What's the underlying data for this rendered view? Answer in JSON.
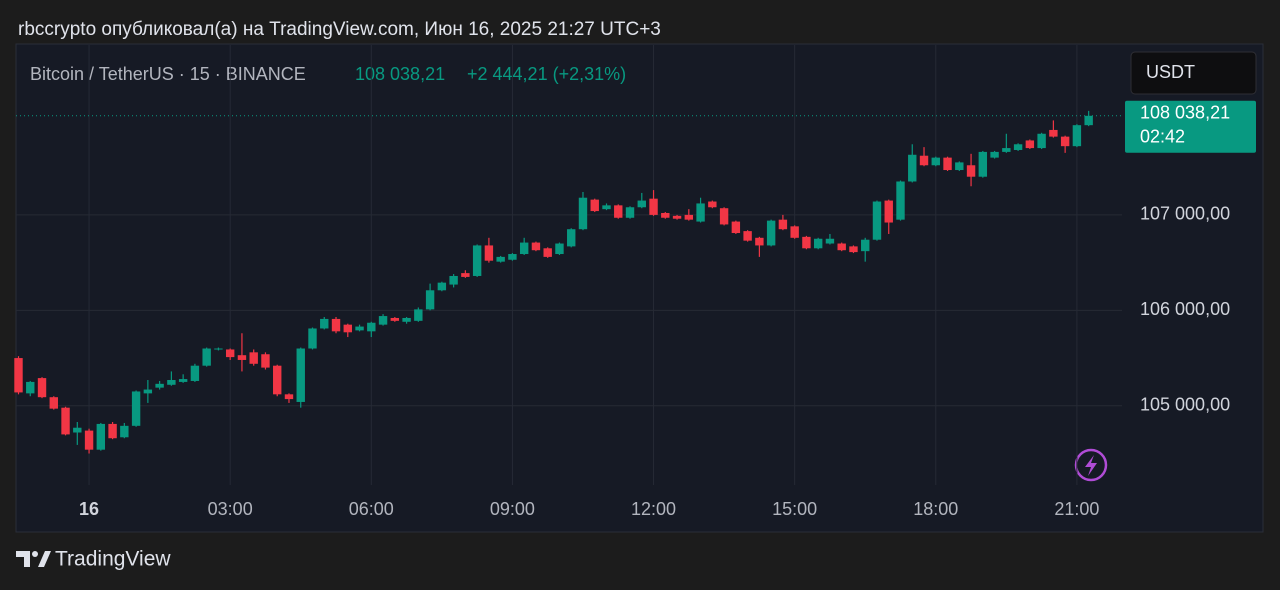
{
  "header": {
    "title": "rbccrypto опубликовал(а) на TradingView.com, Июн 16, 2025 21:27 UTC+3"
  },
  "chart_data": {
    "type": "candlestick",
    "symbol": "Bitcoin / TetherUS · 15 · BINANCE",
    "change": "+2 444,21 (+2,31%)",
    "currency": "USDT",
    "last_price": {
      "value": 108038.21,
      "label": "108 038,21"
    },
    "countdown": "02:42",
    "up_color": "#089981",
    "down_color": "#f23645",
    "grid": true,
    "categories": [
      null,
      null,
      null,
      null,
      null,
      null,
      "16",
      null,
      null,
      null,
      null,
      null,
      null,
      null,
      null,
      null,
      null,
      null,
      "03:00",
      null,
      null,
      null,
      null,
      null,
      null,
      null,
      null,
      null,
      null,
      null,
      "06:00",
      null,
      null,
      null,
      null,
      null,
      null,
      null,
      null,
      null,
      null,
      null,
      "09:00",
      null,
      null,
      null,
      null,
      null,
      null,
      null,
      null,
      null,
      null,
      null,
      "12:00",
      null,
      null,
      null,
      null,
      null,
      null,
      null,
      null,
      null,
      null,
      null,
      "15:00",
      null,
      null,
      null,
      null,
      null,
      null,
      null,
      null,
      null,
      null,
      null,
      "18:00",
      null,
      null,
      null,
      null,
      null,
      null,
      null,
      null,
      null,
      null,
      null,
      "21:00",
      null
    ],
    "open": [
      105500,
      105130,
      105290,
      105090,
      104980,
      104720,
      104740,
      104540,
      104810,
      104670,
      104790,
      105130,
      105190,
      105220,
      105250,
      105260,
      105420,
      105590,
      105590,
      105530,
      105560,
      105540,
      105420,
      105120,
      105040,
      105600,
      105810,
      105910,
      105850,
      105790,
      105780,
      105850,
      105920,
      105880,
      105890,
      106010,
      106210,
      106270,
      106390,
      106360,
      106680,
      106510,
      106530,
      106590,
      106710,
      106650,
      106590,
      106670,
      106850,
      107160,
      107060,
      107100,
      106970,
      107080,
      107170,
      107020,
      106990,
      107000,
      106930,
      107140,
      107070,
      106930,
      106830,
      106760,
      106680,
      106950,
      106880,
      106770,
      106650,
      106700,
      106700,
      106670,
      106620,
      106740,
      107150,
      106950,
      107350,
      107620,
      107520,
      107600,
      107470,
      107520,
      107400,
      107600,
      107660,
      107680,
      107780,
      107700,
      107890,
      107820,
      107720,
      107940
    ],
    "high": [
      105520,
      105260,
      105300,
      105100,
      104990,
      104830,
      104760,
      104820,
      104830,
      104820,
      105160,
      105270,
      105260,
      105360,
      105330,
      105440,
      105610,
      105610,
      105600,
      105760,
      105590,
      105560,
      105430,
      105130,
      105610,
      105820,
      105930,
      105930,
      105860,
      105850,
      105880,
      105960,
      105930,
      105930,
      106030,
      106280,
      106300,
      106380,
      106420,
      106690,
      106760,
      106570,
      106600,
      106760,
      106720,
      106660,
      106710,
      106860,
      107240,
      107170,
      107120,
      107110,
      107090,
      107230,
      107260,
      107030,
      107000,
      107060,
      107180,
      107150,
      107080,
      106940,
      106840,
      106770,
      106950,
      107000,
      106890,
      106780,
      106760,
      106800,
      106710,
      106680,
      106760,
      107150,
      107160,
      107360,
      107740,
      107710,
      107610,
      107610,
      107560,
      107640,
      107670,
      107670,
      107850,
      107750,
      107790,
      107860,
      107990,
      107830,
      107950,
      108090
    ],
    "low": [
      105120,
      105100,
      105080,
      104960,
      104690,
      104590,
      104500,
      104530,
      104650,
      104660,
      104780,
      105030,
      105170,
      105210,
      105240,
      105250,
      105410,
      105580,
      105480,
      105360,
      105420,
      105380,
      105100,
      105030,
      104980,
      105590,
      105800,
      105760,
      105720,
      105780,
      105720,
      105840,
      105880,
      105860,
      105880,
      106000,
      106200,
      106240,
      106340,
      106350,
      106500,
      106500,
      106520,
      106580,
      106620,
      106550,
      106580,
      106660,
      106840,
      107030,
      107050,
      106960,
      106960,
      107070,
      106990,
      106960,
      106950,
      106940,
      106920,
      107070,
      106890,
      106800,
      106720,
      106560,
      106670,
      106840,
      106750,
      106640,
      106640,
      106690,
      106620,
      106600,
      106510,
      106730,
      106800,
      106940,
      107340,
      107510,
      107510,
      107460,
      107460,
      107300,
      107390,
      107590,
      107650,
      107670,
      107690,
      107690,
      107810,
      107650,
      107710,
      107930
    ],
    "close": [
      105140,
      105250,
      105090,
      104970,
      104700,
      104770,
      104540,
      104810,
      104660,
      104790,
      105150,
      105170,
      105230,
      105270,
      105280,
      105420,
      105600,
      105600,
      105510,
      105480,
      105440,
      105400,
      105120,
      105070,
      105600,
      105810,
      105910,
      105780,
      105770,
      105830,
      105870,
      105940,
      105890,
      105920,
      106010,
      106210,
      106290,
      106360,
      106350,
      106680,
      106520,
      106560,
      106590,
      106710,
      106630,
      106560,
      106700,
      106850,
      107180,
      107040,
      107100,
      106970,
      107080,
      107150,
      107000,
      106970,
      106960,
      106950,
      107120,
      107080,
      106900,
      106810,
      106730,
      106680,
      106940,
      106850,
      106760,
      106650,
      106750,
      106750,
      106630,
      106610,
      106740,
      107140,
      106920,
      107350,
      107630,
      107520,
      107600,
      107470,
      107550,
      107400,
      107660,
      107660,
      107700,
      107740,
      107700,
      107850,
      107820,
      107720,
      107940,
      108038.21
    ],
    "ylim": [
      104170,
      108780
    ],
    "yticks": [
      {
        "value": 105000,
        "label": "105 000,00"
      },
      {
        "value": 106000,
        "label": "106 000,00"
      },
      {
        "value": 107000,
        "label": "107 000,00"
      }
    ]
  },
  "footer": {
    "brand": "TradingView"
  }
}
